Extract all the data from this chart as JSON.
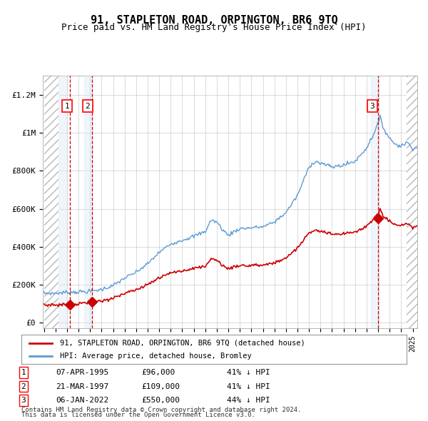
{
  "title": "91, STAPLETON ROAD, ORPINGTON, BR6 9TQ",
  "subtitle": "Price paid vs. HM Land Registry's House Price Index (HPI)",
  "x_start_year": 1993,
  "x_end_year": 2025,
  "y_max": 1300000,
  "yticks": [
    0,
    200000,
    400000,
    600000,
    800000,
    1000000,
    1200000
  ],
  "ytick_labels": [
    "£0",
    "£200K",
    "£400K",
    "£600K",
    "£800K",
    "£1M",
    "£1.2M"
  ],
  "sale_dates": [
    "1995-04-07",
    "1997-03-21",
    "2022-01-06"
  ],
  "sale_prices": [
    96000,
    109000,
    550000
  ],
  "sale_labels": [
    "1",
    "2",
    "3"
  ],
  "hpi_color": "#5b9bd5",
  "price_color": "#cc0000",
  "marker_color": "#cc0000",
  "vline_color": "#cc0000",
  "shade_color": "#d6e4f5",
  "hatch_color": "#b0b0b0",
  "grid_color": "#cccccc",
  "bg_color": "#ffffff",
  "legend_line1": "91, STAPLETON ROAD, ORPINGTON, BR6 9TQ (detached house)",
  "legend_line2": "HPI: Average price, detached house, Bromley",
  "table_rows": [
    [
      "1",
      "07-APR-1995",
      "£96,000",
      "41% ↓ HPI"
    ],
    [
      "2",
      "21-MAR-1997",
      "£109,000",
      "41% ↓ HPI"
    ],
    [
      "3",
      "06-JAN-2022",
      "£550,000",
      "44% ↓ HPI"
    ]
  ],
  "footnote1": "Contains HM Land Registry data © Crown copyright and database right 2024.",
  "footnote2": "This data is licensed under the Open Government Licence v3.0."
}
